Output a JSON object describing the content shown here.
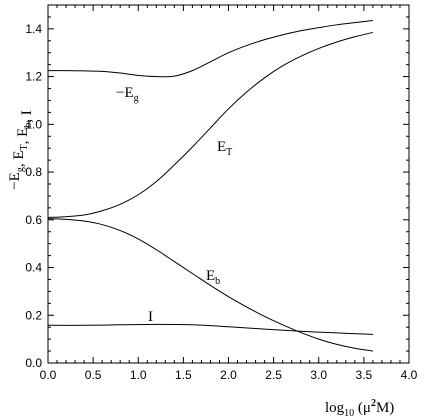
{
  "chart_data": {
    "type": "line",
    "title": "",
    "xlabel": {
      "base": "log",
      "sub": "10",
      "pre": " (μ",
      "sup": "2",
      "post": "M)"
    },
    "ylabel": [
      {
        "base": "−E",
        "sub": "g"
      },
      {
        "base": ", E",
        "sub": "T"
      },
      {
        "base": ", E",
        "sub": "b"
      },
      {
        "base": ", I",
        "sub": ""
      }
    ],
    "xlim": [
      0.0,
      4.0
    ],
    "ylim": [
      0.0,
      1.5
    ],
    "x_ticks": [
      0.0,
      0.5,
      1.0,
      1.5,
      2.0,
      2.5,
      3.0,
      3.5,
      4.0
    ],
    "x_tick_labels": [
      "0.0",
      "0.5",
      "1.0",
      "1.5",
      "2.0",
      "2.5",
      "3.0",
      "3.5",
      "4.0"
    ],
    "y_ticks": [
      0.0,
      0.2,
      0.4,
      0.6,
      0.8,
      1.0,
      1.2,
      1.4
    ],
    "y_tick_labels": [
      "0.0",
      "0.2",
      "0.4",
      "0.6",
      "0.8",
      "1.0",
      "1.2",
      "1.4"
    ],
    "grid": false,
    "series": [
      {
        "name": "−Eg",
        "label": {
          "base": "−E",
          "sub": "g"
        },
        "x": [
          0.0,
          0.2,
          0.4,
          0.6,
          0.8,
          1.0,
          1.2,
          1.4,
          1.6,
          1.8,
          2.0,
          2.2,
          2.4,
          2.6,
          2.8,
          3.0,
          3.2,
          3.4,
          3.6
        ],
        "y": [
          1.225,
          1.225,
          1.224,
          1.222,
          1.215,
          1.205,
          1.2,
          1.202,
          1.225,
          1.262,
          1.3,
          1.33,
          1.355,
          1.375,
          1.392,
          1.405,
          1.417,
          1.426,
          1.435
        ]
      },
      {
        "name": "ET",
        "label": {
          "base": "E",
          "sub": "T"
        },
        "x": [
          0.0,
          0.2,
          0.4,
          0.6,
          0.8,
          1.0,
          1.2,
          1.4,
          1.6,
          1.8,
          2.0,
          2.2,
          2.4,
          2.6,
          2.8,
          3.0,
          3.2,
          3.4,
          3.6
        ],
        "y": [
          0.61,
          0.613,
          0.62,
          0.638,
          0.665,
          0.705,
          0.76,
          0.83,
          0.905,
          0.985,
          1.065,
          1.135,
          1.195,
          1.245,
          1.285,
          1.318,
          1.345,
          1.367,
          1.385
        ]
      },
      {
        "name": "Eb",
        "label": {
          "base": "E",
          "sub": "b"
        },
        "x": [
          0.0,
          0.2,
          0.4,
          0.6,
          0.8,
          1.0,
          1.2,
          1.4,
          1.6,
          1.8,
          2.0,
          2.2,
          2.4,
          2.6,
          2.8,
          3.0,
          3.2,
          3.4,
          3.6
        ],
        "y": [
          0.605,
          0.602,
          0.595,
          0.58,
          0.555,
          0.52,
          0.475,
          0.425,
          0.375,
          0.325,
          0.278,
          0.235,
          0.195,
          0.16,
          0.128,
          0.1,
          0.078,
          0.062,
          0.05
        ]
      },
      {
        "name": "I",
        "label": {
          "base": "I",
          "sub": ""
        },
        "x": [
          0.0,
          0.4,
          0.8,
          1.2,
          1.6,
          2.0,
          2.4,
          2.8,
          3.2,
          3.6
        ],
        "y": [
          0.158,
          0.158,
          0.16,
          0.162,
          0.16,
          0.152,
          0.142,
          0.133,
          0.126,
          0.12
        ]
      }
    ]
  }
}
